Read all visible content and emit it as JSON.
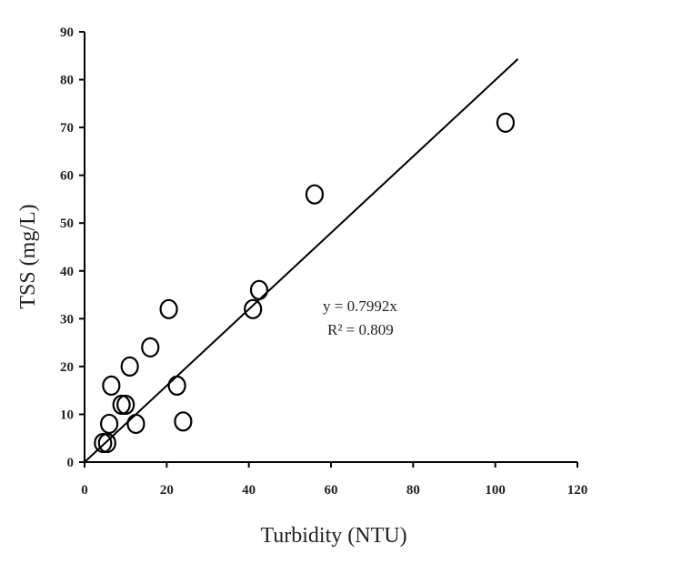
{
  "chart_data": {
    "type": "scatter",
    "title": "",
    "xlabel": "Turbidity (NTU)",
    "ylabel": "TSS (mg/L)",
    "xlim": [
      0,
      120
    ],
    "ylim": [
      0,
      90
    ],
    "xticks": [
      "0",
      "20",
      "40",
      "60",
      "80",
      "100",
      "120"
    ],
    "yticks": [
      "0",
      "10",
      "20",
      "30",
      "40",
      "50",
      "60",
      "70",
      "80",
      "90"
    ],
    "grid": false,
    "legend": "none",
    "points": [
      {
        "x": 4.5,
        "y": 4
      },
      {
        "x": 5.5,
        "y": 4
      },
      {
        "x": 6,
        "y": 8
      },
      {
        "x": 6.5,
        "y": 16
      },
      {
        "x": 9,
        "y": 12
      },
      {
        "x": 10,
        "y": 12
      },
      {
        "x": 11,
        "y": 20
      },
      {
        "x": 12.5,
        "y": 8
      },
      {
        "x": 16,
        "y": 24
      },
      {
        "x": 20.5,
        "y": 32
      },
      {
        "x": 22.5,
        "y": 16
      },
      {
        "x": 24,
        "y": 8.5
      },
      {
        "x": 41,
        "y": 32
      },
      {
        "x": 42.5,
        "y": 36
      },
      {
        "x": 56,
        "y": 56
      },
      {
        "x": 102.5,
        "y": 71
      }
    ],
    "trendline": {
      "slope": 0.7992,
      "intercept": 0,
      "x_range": [
        0,
        105.5
      ]
    },
    "annotations": [
      "y = 0.7992x",
      "R² = 0.809"
    ],
    "colors": {
      "marker_edge": "#000000",
      "line": "#000000",
      "axis": "#000000"
    }
  }
}
